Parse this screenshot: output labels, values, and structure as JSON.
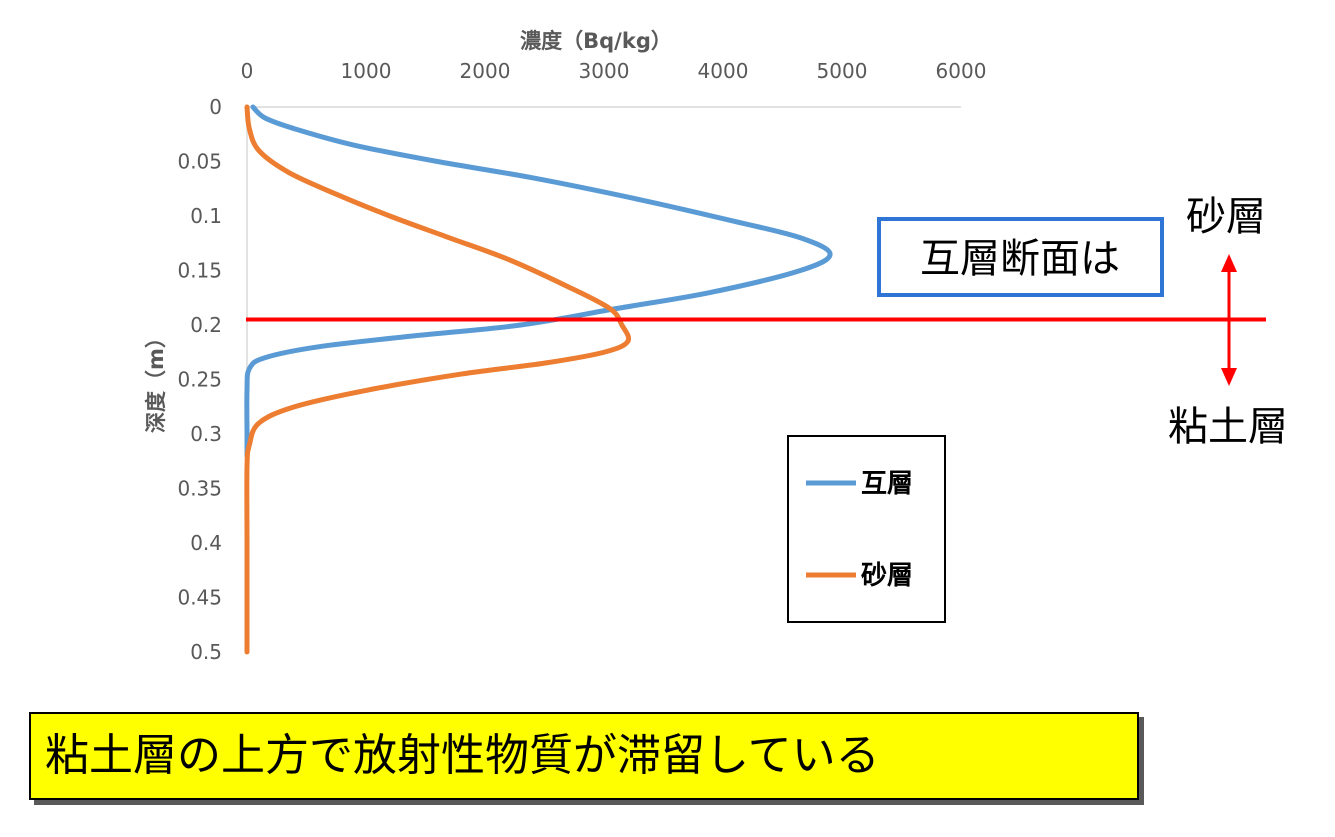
{
  "chart_data": {
    "type": "line",
    "orientation": "depth-profile",
    "xlabel": "濃度（Bq/kg）",
    "ylabel": "深度（m）",
    "x_axis_position": "top",
    "y_axis_inverted": true,
    "xlim": [
      0,
      6000
    ],
    "ylim": [
      0,
      0.5
    ],
    "x_ticks": [
      "0",
      "1000",
      "2000",
      "3000",
      "4000",
      "5000",
      "6000"
    ],
    "y_ticks": [
      "0",
      "0.05",
      "0.1",
      "0.15",
      "0.2",
      "0.25",
      "0.3",
      "0.35",
      "0.4",
      "0.45",
      "0.5"
    ],
    "grid": false,
    "series": [
      {
        "name": "互層",
        "color": "#5b9bd5",
        "points": [
          [
            50,
            0
          ],
          [
            150,
            0.01
          ],
          [
            400,
            0.02
          ],
          [
            900,
            0.035
          ],
          [
            1600,
            0.05
          ],
          [
            2400,
            0.065
          ],
          [
            3300,
            0.085
          ],
          [
            4100,
            0.105
          ],
          [
            4650,
            0.12
          ],
          [
            4900,
            0.135
          ],
          [
            4650,
            0.15
          ],
          [
            3900,
            0.17
          ],
          [
            3100,
            0.185
          ],
          [
            2300,
            0.2
          ],
          [
            1400,
            0.21
          ],
          [
            600,
            0.22
          ],
          [
            150,
            0.23
          ],
          [
            20,
            0.24
          ],
          [
            0,
            0.26
          ],
          [
            0,
            0.3
          ],
          [
            0,
            0.32
          ]
        ]
      },
      {
        "name": "砂層",
        "color": "#ed7d31",
        "points": [
          [
            0,
            0
          ],
          [
            20,
            0.02
          ],
          [
            100,
            0.04
          ],
          [
            350,
            0.06
          ],
          [
            750,
            0.08
          ],
          [
            1200,
            0.1
          ],
          [
            1700,
            0.12
          ],
          [
            2200,
            0.14
          ],
          [
            2700,
            0.165
          ],
          [
            3050,
            0.185
          ],
          [
            3150,
            0.2
          ],
          [
            3200,
            0.215
          ],
          [
            3000,
            0.225
          ],
          [
            2500,
            0.235
          ],
          [
            1800,
            0.245
          ],
          [
            1000,
            0.26
          ],
          [
            400,
            0.275
          ],
          [
            100,
            0.29
          ],
          [
            20,
            0.31
          ],
          [
            0,
            0.33
          ],
          [
            0,
            0.4
          ],
          [
            0,
            0.5
          ]
        ]
      }
    ],
    "legend_placement": "inside-bottom-right",
    "annotations": {
      "reference_line_depth": 0.195,
      "reference_line_color": "#ff0000"
    }
  },
  "annotation_box": {
    "label": "互層断面は",
    "border_color": "#2e75d6"
  },
  "side_labels": {
    "upper": "砂層",
    "lower": "粘土層",
    "arrow_color": "#ff0000"
  },
  "conclusion": {
    "text": "粘土層の上方で放射性物質が滞留している",
    "background": "#ffff00"
  }
}
